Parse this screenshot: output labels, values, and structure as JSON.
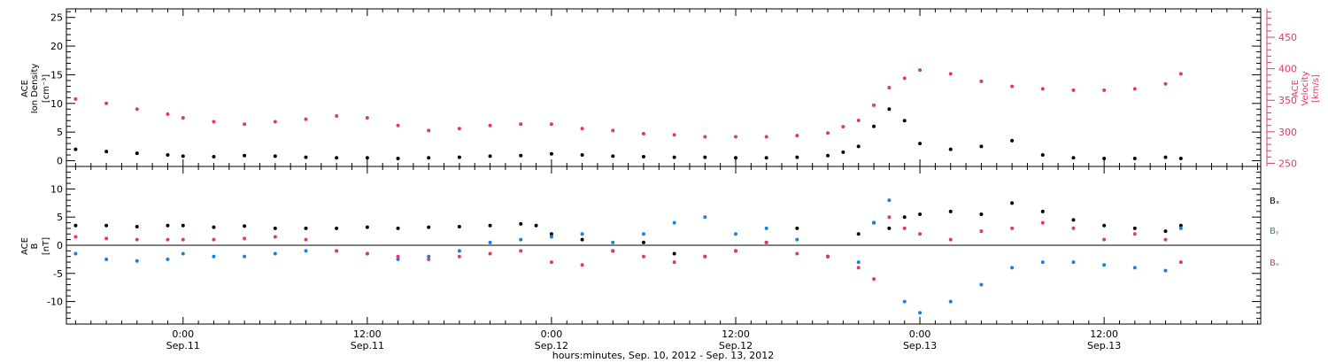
{
  "colors": {
    "black": "#000000",
    "pink": "#e03a68",
    "blue": "#1b7fdc"
  },
  "xaxis": {
    "title": "hours:minutes, Sep. 10, 2012 - Sep. 13, 2012",
    "ticks": [
      {
        "t": 0,
        "time": "0:00",
        "date": "Sep.11"
      },
      {
        "t": 12,
        "time": "12:00",
        "date": "Sep.11"
      },
      {
        "t": 24,
        "time": "0:00",
        "date": "Sep.12"
      },
      {
        "t": 36,
        "time": "12:00",
        "date": "Sep.12"
      },
      {
        "t": 48,
        "time": "0:00",
        "date": "Sep.13"
      },
      {
        "t": 60,
        "time": "12:00",
        "date": "Sep.13"
      }
    ]
  },
  "panel1": {
    "left_label": [
      "ACE",
      "Ion Density",
      "[cm⁻³]"
    ],
    "right_label": [
      "ACE",
      "Velocity",
      "[km/s]"
    ]
  },
  "panel2": {
    "left_label": [
      "ACE",
      "B",
      "[nT]"
    ],
    "legend": [
      "Bₓ",
      "Bᵧ",
      "Bₒ"
    ]
  },
  "chart_data": [
    {
      "type": "scatter",
      "title": "",
      "xlabel": "hours:minutes, Sep. 10, 2012 - Sep. 13, 2012",
      "ylabel": "ACE Ion Density [cm⁻³]",
      "y2label": "ACE Velocity [km/s]",
      "xlim": [
        -7.6,
        70.2
      ],
      "ylim": [
        -1,
        26.5
      ],
      "y2lim": [
        245,
        495
      ],
      "yticks": [
        0,
        5,
        10,
        15,
        20,
        25
      ],
      "y2ticks": [
        250,
        300,
        350,
        400,
        450
      ],
      "series": [
        {
          "name": "Ion Density",
          "color": "black",
          "axis": "left",
          "x": [
            -7,
            -5,
            -3,
            -1,
            0,
            2,
            4,
            6,
            8,
            10,
            12,
            14,
            16,
            18,
            20,
            22,
            24,
            26,
            28,
            30,
            32,
            34,
            36,
            38,
            40,
            42,
            43,
            44,
            45,
            46,
            47,
            48,
            50,
            52,
            54,
            56,
            58,
            60,
            62,
            64,
            65
          ],
          "y": [
            2.0,
            1.6,
            1.3,
            1.0,
            0.8,
            0.7,
            0.9,
            0.8,
            0.6,
            0.5,
            0.5,
            0.4,
            0.5,
            0.6,
            0.8,
            0.9,
            1.2,
            1.0,
            0.8,
            0.7,
            0.6,
            0.6,
            0.5,
            0.5,
            0.6,
            0.9,
            1.5,
            2.5,
            6.0,
            9.0,
            7.0,
            3.0,
            2.0,
            2.5,
            3.5,
            1.0,
            0.5,
            0.4,
            0.4,
            0.6,
            0.4
          ]
        },
        {
          "name": "Velocity",
          "color": "pink",
          "axis": "right",
          "x": [
            -7,
            -5,
            -3,
            -1,
            0,
            2,
            4,
            6,
            8,
            10,
            12,
            14,
            16,
            18,
            20,
            22,
            24,
            26,
            28,
            30,
            32,
            34,
            36,
            38,
            40,
            42,
            43,
            44,
            45,
            46,
            47,
            48,
            50,
            52,
            54,
            56,
            58,
            60,
            62,
            64,
            65
          ],
          "y": [
            352,
            345,
            336,
            328,
            322,
            316,
            312,
            316,
            320,
            325,
            322,
            310,
            302,
            305,
            310,
            312,
            312,
            305,
            302,
            297,
            295,
            292,
            292,
            292,
            294,
            298,
            308,
            318,
            342,
            370,
            385,
            398,
            392,
            380,
            372,
            368,
            366,
            366,
            368,
            376,
            392
          ]
        }
      ]
    },
    {
      "type": "scatter",
      "title": "",
      "xlabel": "hours:minutes, Sep. 10, 2012 - Sep. 13, 2012",
      "ylabel": "ACE B [nT]",
      "xlim": [
        -7.6,
        70.2
      ],
      "ylim": [
        -14,
        14
      ],
      "yticks": [
        -10,
        -5,
        0,
        5,
        10
      ],
      "series": [
        {
          "name": "Bₓ",
          "color": "black",
          "x": [
            -7,
            -5,
            -3,
            -1,
            0,
            2,
            4,
            6,
            8,
            10,
            12,
            14,
            16,
            18,
            20,
            22,
            23,
            24,
            26,
            28,
            30,
            32,
            34,
            36,
            38,
            40,
            42,
            44,
            45,
            46,
            47,
            48,
            50,
            52,
            54,
            56,
            58,
            60,
            62,
            64,
            65
          ],
          "y": [
            3.5,
            3.5,
            3.3,
            3.5,
            3.5,
            3.2,
            3.4,
            3.0,
            3.0,
            3.0,
            3.2,
            3.0,
            3.2,
            3.3,
            3.5,
            3.8,
            3.5,
            2.0,
            1.0,
            -1.0,
            0.5,
            -1.5,
            -2.0,
            -1.0,
            0.5,
            3.0,
            -2.0,
            2.0,
            4.0,
            3.0,
            5.0,
            5.5,
            6.0,
            5.5,
            7.5,
            6.0,
            4.5,
            3.5,
            3.0,
            2.5,
            3.5
          ]
        },
        {
          "name": "Bᵧ",
          "color": "blue",
          "x": [
            -7,
            -5,
            -3,
            -1,
            0,
            2,
            4,
            6,
            8,
            10,
            12,
            14,
            16,
            18,
            20,
            22,
            24,
            26,
            28,
            30,
            32,
            34,
            36,
            38,
            40,
            42,
            44,
            45,
            46,
            47,
            48,
            50,
            52,
            54,
            56,
            58,
            60,
            62,
            64,
            65
          ],
          "y": [
            -1.5,
            -2.5,
            -2.8,
            -2.5,
            -1.5,
            -2.0,
            -2.0,
            -1.5,
            -1.0,
            -1.0,
            -1.5,
            -2.5,
            -2.0,
            -1.0,
            0.5,
            1.0,
            1.5,
            2.0,
            0.5,
            2.0,
            4.0,
            5.0,
            2.0,
            3.0,
            1.0,
            -2.0,
            -3.0,
            4.0,
            8.0,
            -10.0,
            -12.0,
            -10.0,
            -7.0,
            -4.0,
            -3.0,
            -3.0,
            -3.5,
            -4.0,
            -4.5,
            3.0
          ]
        },
        {
          "name": "Bₒ",
          "color": "pink",
          "x": [
            -7,
            -5,
            -3,
            -1,
            0,
            2,
            4,
            6,
            8,
            10,
            12,
            14,
            16,
            18,
            20,
            22,
            24,
            26,
            28,
            30,
            32,
            34,
            36,
            38,
            40,
            42,
            44,
            45,
            46,
            47,
            48,
            50,
            52,
            54,
            56,
            58,
            60,
            62,
            64,
            65
          ],
          "y": [
            1.5,
            1.2,
            1.0,
            1.0,
            1.0,
            1.0,
            1.2,
            1.5,
            1.0,
            -1.0,
            -1.5,
            -2.0,
            -2.5,
            -2.0,
            -1.5,
            -1.0,
            -3.0,
            -3.5,
            -1.0,
            -2.0,
            -3.0,
            -2.0,
            -1.0,
            0.5,
            -1.5,
            -2.0,
            -4.0,
            -6.0,
            5.0,
            3.0,
            2.0,
            1.0,
            2.5,
            3.0,
            4.0,
            3.0,
            1.0,
            2.0,
            1.0,
            -3.0
          ]
        }
      ]
    }
  ]
}
